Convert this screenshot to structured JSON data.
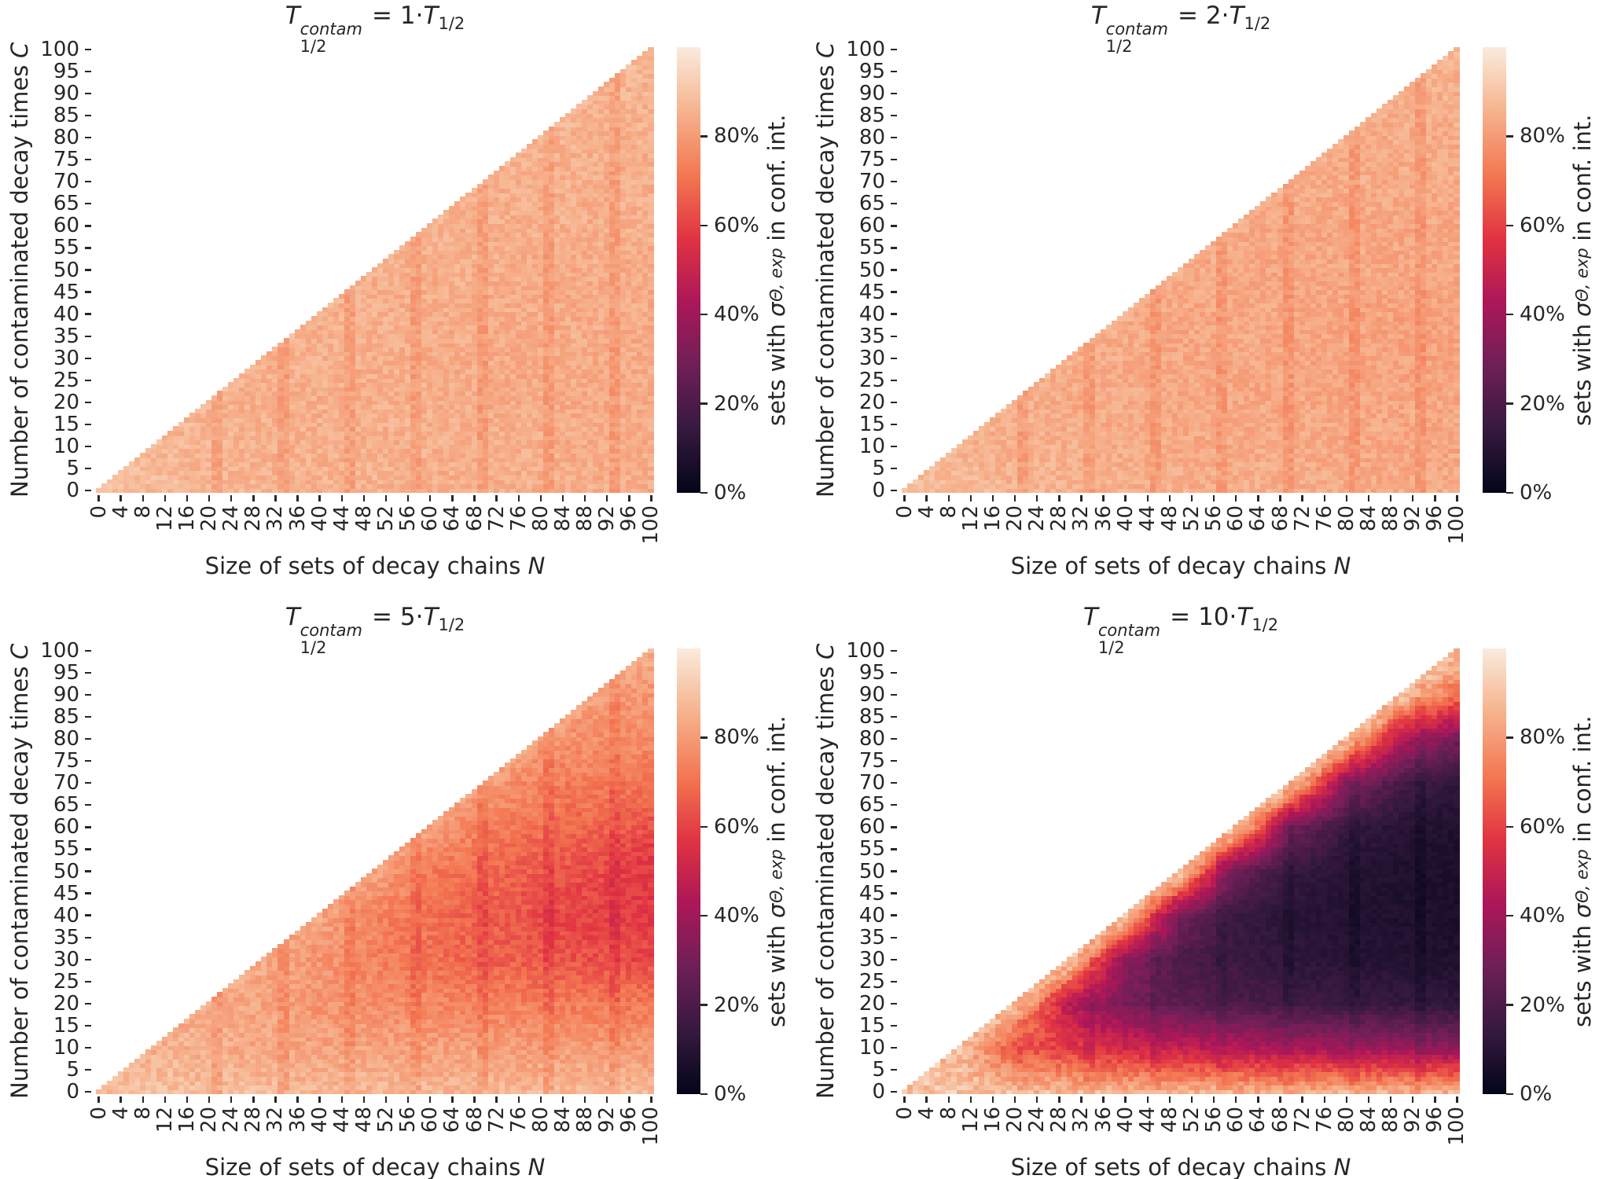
{
  "figure": {
    "background": "#ffffff"
  },
  "shared": {
    "xlabel": {
      "text": "Size of sets of decay chains ",
      "var": "N"
    },
    "ylabel": {
      "text": "Number of contaminated decay times ",
      "var": "C"
    },
    "xticks": [
      0,
      4,
      8,
      12,
      16,
      20,
      24,
      28,
      32,
      36,
      40,
      44,
      48,
      52,
      56,
      60,
      64,
      68,
      72,
      76,
      80,
      84,
      88,
      92,
      96,
      100
    ],
    "yticks": [
      0,
      5,
      10,
      15,
      20,
      25,
      30,
      35,
      40,
      45,
      50,
      55,
      60,
      65,
      70,
      75,
      80,
      85,
      90,
      95,
      100
    ],
    "colorbar": {
      "tick_labels": [
        "0%",
        "20%",
        "40%",
        "60%",
        "80%"
      ],
      "tick_values": [
        0,
        20,
        40,
        60,
        80
      ],
      "vmin": 0,
      "vmax": 100,
      "label": {
        "pre": "sets with ",
        "sigma": "σ",
        "sub": "Θ, exp",
        "post": " in conf. int."
      }
    },
    "colormap": {
      "name": "rocket",
      "positions": [
        0.0,
        0.14,
        0.29,
        0.43,
        0.57,
        0.71,
        0.86,
        1.0
      ],
      "colors": [
        "#03051A",
        "#35193E",
        "#701F57",
        "#AD1759",
        "#E13342",
        "#F37651",
        "#F6B48F",
        "#FAEBDD"
      ]
    }
  },
  "chart_data": [
    {
      "id": "contam-1x",
      "type": "heatmap",
      "title": {
        "base": "T",
        "sup": "contam",
        "sub": "1/2",
        "eq": "=",
        "factor": "1",
        "dot": "·",
        "base2": "T",
        "sub2": "1/2"
      },
      "x_range": [
        0,
        100
      ],
      "y_range": [
        0,
        100
      ],
      "mask": "C<=N",
      "values_unit": "%",
      "grid_step": 10,
      "values_grid": [
        [
          90,
          88,
          87,
          86,
          86,
          86,
          85,
          85,
          85,
          85,
          85
        ],
        [
          88,
          87,
          86,
          86,
          85,
          85,
          85,
          85,
          85,
          84,
          84
        ],
        [
          87,
          87,
          86,
          85,
          85,
          85,
          85,
          84,
          84,
          84,
          84
        ],
        [
          87,
          86,
          86,
          85,
          85,
          85,
          84,
          84,
          84,
          84,
          84
        ],
        [
          87,
          86,
          86,
          86,
          85,
          85,
          85,
          84,
          84,
          84,
          84
        ],
        [
          87,
          86,
          86,
          86,
          86,
          85,
          85,
          85,
          84,
          84,
          84
        ],
        [
          87,
          87,
          86,
          86,
          86,
          86,
          85,
          85,
          85,
          85,
          85
        ],
        [
          87,
          87,
          86,
          86,
          86,
          86,
          86,
          85,
          85,
          85,
          85
        ],
        [
          88,
          87,
          87,
          86,
          86,
          86,
          86,
          86,
          86,
          85,
          85
        ],
        [
          88,
          88,
          87,
          87,
          87,
          86,
          86,
          86,
          86,
          86,
          86
        ],
        [
          88,
          88,
          87,
          87,
          87,
          87,
          87,
          86,
          86,
          86,
          87
        ]
      ],
      "noise": {
        "seed": 11,
        "base": 4,
        "scale": 0
      },
      "diag_boost": {
        "width": 3,
        "value": 88,
        "strength": 0.3
      },
      "stripes": {
        "columns": [
          21,
          22,
          33,
          34,
          45,
          46,
          57,
          58,
          69,
          70,
          81,
          82,
          93,
          94
        ],
        "delta": -4
      }
    },
    {
      "id": "contam-2x",
      "type": "heatmap",
      "title": {
        "base": "T",
        "sup": "contam",
        "sub": "1/2",
        "eq": "=",
        "factor": "2",
        "dot": "·",
        "base2": "T",
        "sub2": "1/2"
      },
      "x_range": [
        0,
        100
      ],
      "y_range": [
        0,
        100
      ],
      "mask": "C<=N",
      "values_unit": "%",
      "grid_step": 10,
      "values_grid": [
        [
          90,
          88,
          86,
          86,
          85,
          85,
          85,
          84,
          84,
          84,
          84
        ],
        [
          88,
          86,
          85,
          85,
          84,
          84,
          84,
          84,
          83,
          83,
          83
        ],
        [
          87,
          86,
          85,
          84,
          84,
          83,
          83,
          83,
          83,
          83,
          83
        ],
        [
          87,
          86,
          85,
          84,
          84,
          83,
          83,
          83,
          82,
          82,
          82
        ],
        [
          87,
          86,
          85,
          84,
          84,
          83,
          83,
          83,
          82,
          82,
          82
        ],
        [
          87,
          86,
          85,
          84,
          84,
          84,
          83,
          83,
          83,
          83,
          83
        ],
        [
          87,
          86,
          85,
          85,
          84,
          84,
          84,
          83,
          83,
          83,
          83
        ],
        [
          87,
          87,
          86,
          85,
          85,
          84,
          84,
          84,
          84,
          84,
          84
        ],
        [
          88,
          87,
          86,
          86,
          85,
          85,
          85,
          84,
          84,
          84,
          84
        ],
        [
          88,
          87,
          87,
          86,
          86,
          85,
          85,
          85,
          85,
          85,
          85
        ],
        [
          88,
          88,
          87,
          87,
          86,
          86,
          86,
          86,
          85,
          85,
          86
        ]
      ],
      "noise": {
        "seed": 22,
        "base": 4,
        "scale": 0
      },
      "diag_boost": {
        "width": 3,
        "value": 88,
        "strength": 0.3
      },
      "stripes": {
        "columns": [
          21,
          22,
          33,
          34,
          45,
          46,
          57,
          58,
          69,
          70,
          81,
          82,
          93,
          94
        ],
        "delta": -4
      }
    },
    {
      "id": "contam-5x",
      "type": "heatmap",
      "title": {
        "base": "T",
        "sup": "contam",
        "sub": "1/2",
        "eq": "=",
        "factor": "5",
        "dot": "·",
        "base2": "T",
        "sub2": "1/2"
      },
      "x_range": [
        0,
        100
      ],
      "y_range": [
        0,
        100
      ],
      "mask": "C<=N",
      "values_unit": "%",
      "grid_step": 10,
      "values_grid": [
        [
          90,
          89,
          88,
          88,
          87,
          87,
          87,
          87,
          87,
          87,
          87
        ],
        [
          87,
          86,
          85,
          83,
          82,
          82,
          81,
          81,
          80,
          80,
          80
        ],
        [
          84,
          84,
          84,
          82,
          79,
          77,
          75,
          74,
          73,
          72,
          72
        ],
        [
          83,
          83,
          83,
          83,
          79,
          74,
          70,
          67,
          65,
          63,
          62
        ],
        [
          82,
          82,
          82,
          82,
          82,
          75,
          70,
          66,
          62,
          60,
          58
        ],
        [
          82,
          82,
          82,
          82,
          82,
          82,
          72,
          68,
          65,
          62,
          57
        ],
        [
          81,
          81,
          81,
          81,
          81,
          81,
          81,
          73,
          70,
          67,
          63
        ],
        [
          80,
          80,
          80,
          80,
          80,
          80,
          80,
          80,
          74,
          72,
          70
        ],
        [
          79,
          79,
          79,
          79,
          79,
          79,
          79,
          79,
          79,
          77,
          76
        ],
        [
          80,
          80,
          80,
          80,
          80,
          80,
          80,
          80,
          80,
          80,
          79
        ],
        [
          85,
          85,
          85,
          85,
          85,
          85,
          85,
          85,
          85,
          85,
          85
        ]
      ],
      "noise": {
        "seed": 33,
        "base": 4.5,
        "scale": 0
      },
      "diag_boost": {
        "width": 4,
        "value": 84,
        "strength": 0.5
      },
      "stripes": {
        "columns": [
          21,
          22,
          33,
          34,
          45,
          46,
          57,
          58,
          69,
          70,
          81,
          82,
          93,
          94
        ],
        "delta": -4
      }
    },
    {
      "id": "contam-10x",
      "type": "heatmap",
      "title": {
        "base": "T",
        "sup": "contam",
        "sub": "1/2",
        "eq": "=",
        "factor": "10",
        "dot": "·",
        "base2": "T",
        "sub2": "1/2"
      },
      "x_range": [
        0,
        100
      ],
      "y_range": [
        0,
        100
      ],
      "mask": "C<=N",
      "values_unit": "%",
      "grid_step": 10,
      "values_grid": [
        [
          92,
          90,
          88,
          87,
          86,
          86,
          85,
          85,
          85,
          85,
          85
        ],
        [
          88,
          87,
          65,
          58,
          52,
          48,
          45,
          42,
          40,
          38,
          35
        ],
        [
          87,
          87,
          86,
          45,
          30,
          24,
          20,
          17,
          15,
          14,
          12
        ],
        [
          87,
          87,
          87,
          87,
          35,
          20,
          15,
          12,
          10,
          9,
          8
        ],
        [
          87,
          87,
          87,
          87,
          87,
          30,
          15,
          11,
          9,
          8,
          7
        ],
        [
          86,
          86,
          86,
          86,
          86,
          86,
          28,
          14,
          10,
          8,
          7
        ],
        [
          86,
          86,
          86,
          86,
          86,
          86,
          86,
          30,
          14,
          10,
          8
        ],
        [
          86,
          86,
          86,
          86,
          86,
          86,
          86,
          86,
          35,
          18,
          12
        ],
        [
          87,
          87,
          87,
          87,
          87,
          87,
          87,
          87,
          87,
          45,
          30
        ],
        [
          88,
          88,
          88,
          88,
          88,
          88,
          88,
          88,
          88,
          88,
          70
        ],
        [
          90,
          90,
          90,
          90,
          90,
          90,
          90,
          90,
          90,
          90,
          88
        ]
      ],
      "noise": {
        "seed": 44,
        "base": 1.5,
        "scale": 0.06
      },
      "diag_boost": {
        "width": 5,
        "value": 88,
        "strength": 0.85
      },
      "stripes": {
        "columns": [
          21,
          22,
          33,
          34,
          45,
          46,
          57,
          58,
          69,
          70,
          81,
          82,
          93,
          94
        ],
        "delta": -3
      }
    }
  ]
}
